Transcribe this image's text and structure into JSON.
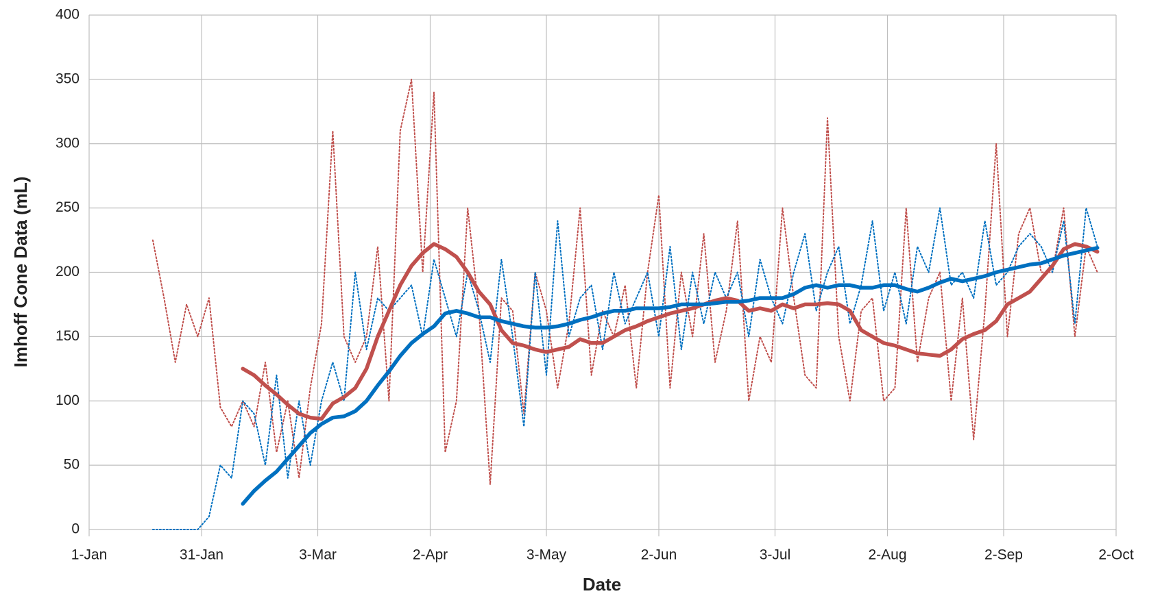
{
  "chart_data": {
    "type": "line",
    "xlabel": "Date",
    "ylabel": "Imhoff Cone Data (mL)",
    "grid": true,
    "xlim": [
      0,
      274
    ],
    "xticks": [
      {
        "value": 0,
        "label": "1-Jan"
      },
      {
        "value": 30,
        "label": "31-Jan"
      },
      {
        "value": 61,
        "label": "3-Mar"
      },
      {
        "value": 91,
        "label": "2-Apr"
      },
      {
        "value": 122,
        "label": "3-May"
      },
      {
        "value": 152,
        "label": "2-Jun"
      },
      {
        "value": 183,
        "label": "3-Jul"
      },
      {
        "value": 213,
        "label": "2-Aug"
      },
      {
        "value": 244,
        "label": "2-Sep"
      },
      {
        "value": 274,
        "label": "2-Oct"
      }
    ],
    "ylim": [
      0,
      400
    ],
    "yticks": [
      0,
      50,
      100,
      150,
      200,
      250,
      300,
      350,
      400
    ],
    "x": [
      17,
      20,
      23,
      26,
      29,
      32,
      35,
      38,
      41,
      44,
      47,
      50,
      53,
      56,
      59,
      62,
      65,
      68,
      71,
      74,
      77,
      80,
      83,
      86,
      89,
      92,
      95,
      98,
      101,
      104,
      107,
      110,
      113,
      116,
      119,
      122,
      125,
      128,
      131,
      134,
      137,
      140,
      143,
      146,
      149,
      152,
      155,
      158,
      161,
      164,
      167,
      170,
      173,
      176,
      179,
      182,
      185,
      188,
      191,
      194,
      197,
      200,
      203,
      206,
      209,
      212,
      215,
      218,
      221,
      224,
      227,
      230,
      233,
      236,
      239,
      242,
      245,
      248,
      251,
      254,
      257,
      260,
      263,
      266,
      269
    ],
    "series": [
      {
        "color": "#c0504d",
        "style": "dotted",
        "values": [
          225,
          180,
          130,
          175,
          150,
          180,
          95,
          80,
          100,
          80,
          130,
          60,
          100,
          40,
          110,
          160,
          310,
          150,
          130,
          150,
          220,
          100,
          310,
          350,
          200,
          340,
          60,
          100,
          250,
          170,
          35,
          180,
          170,
          90,
          200,
          170,
          110,
          160,
          250,
          120,
          170,
          150,
          190,
          110,
          200,
          260,
          110,
          200,
          150,
          230,
          130,
          170,
          240,
          100,
          150,
          130,
          250,
          180,
          120,
          110,
          320,
          150,
          100,
          170,
          180,
          100,
          110,
          250,
          130,
          180,
          200,
          100,
          180,
          70,
          170,
          300,
          150,
          230,
          250,
          200,
          200,
          250,
          150,
          220,
          200
        ]
      },
      {
        "color": "#0070c0",
        "style": "dotted",
        "values": [
          0,
          0,
          0,
          0,
          0,
          10,
          50,
          40,
          100,
          90,
          50,
          120,
          40,
          100,
          50,
          100,
          130,
          100,
          200,
          140,
          180,
          170,
          180,
          190,
          150,
          210,
          180,
          150,
          200,
          170,
          130,
          210,
          150,
          80,
          200,
          120,
          240,
          150,
          180,
          190,
          140,
          200,
          160,
          180,
          200,
          150,
          220,
          140,
          200,
          160,
          200,
          180,
          200,
          150,
          210,
          180,
          160,
          200,
          230,
          170,
          200,
          220,
          160,
          190,
          240,
          170,
          200,
          160,
          220,
          200,
          250,
          190,
          200,
          180,
          240,
          190,
          200,
          220,
          230,
          220,
          200,
          240,
          160,
          250,
          220
        ]
      },
      {
        "color": "#c0504d",
        "style": "solid",
        "values": [
          null,
          null,
          null,
          null,
          null,
          null,
          null,
          null,
          125,
          120,
          112,
          105,
          97,
          90,
          87,
          86,
          98,
          103,
          110,
          125,
          150,
          170,
          190,
          205,
          215,
          222,
          218,
          212,
          200,
          185,
          175,
          155,
          145,
          143,
          140,
          138,
          140,
          142,
          148,
          145,
          145,
          150,
          155,
          158,
          162,
          165,
          168,
          170,
          172,
          175,
          178,
          180,
          178,
          170,
          172,
          170,
          175,
          172,
          175,
          175,
          176,
          175,
          170,
          155,
          150,
          145,
          143,
          140,
          137,
          136,
          135,
          140,
          148,
          152,
          155,
          162,
          175,
          180,
          185,
          195,
          205,
          218,
          222,
          220,
          216
        ]
      },
      {
        "color": "#0070c0",
        "style": "solid",
        "values": [
          null,
          null,
          null,
          null,
          null,
          null,
          null,
          null,
          20,
          30,
          38,
          45,
          55,
          65,
          75,
          82,
          87,
          88,
          92,
          100,
          112,
          123,
          135,
          145,
          152,
          158,
          168,
          170,
          168,
          165,
          165,
          162,
          160,
          158,
          157,
          157,
          158,
          160,
          163,
          165,
          168,
          170,
          170,
          172,
          172,
          172,
          173,
          175,
          175,
          175,
          176,
          177,
          177,
          178,
          180,
          180,
          180,
          183,
          188,
          190,
          188,
          190,
          190,
          188,
          188,
          190,
          190,
          187,
          185,
          188,
          192,
          195,
          193,
          195,
          197,
          200,
          202,
          204,
          206,
          207,
          210,
          213,
          215,
          217,
          219
        ]
      }
    ]
  }
}
